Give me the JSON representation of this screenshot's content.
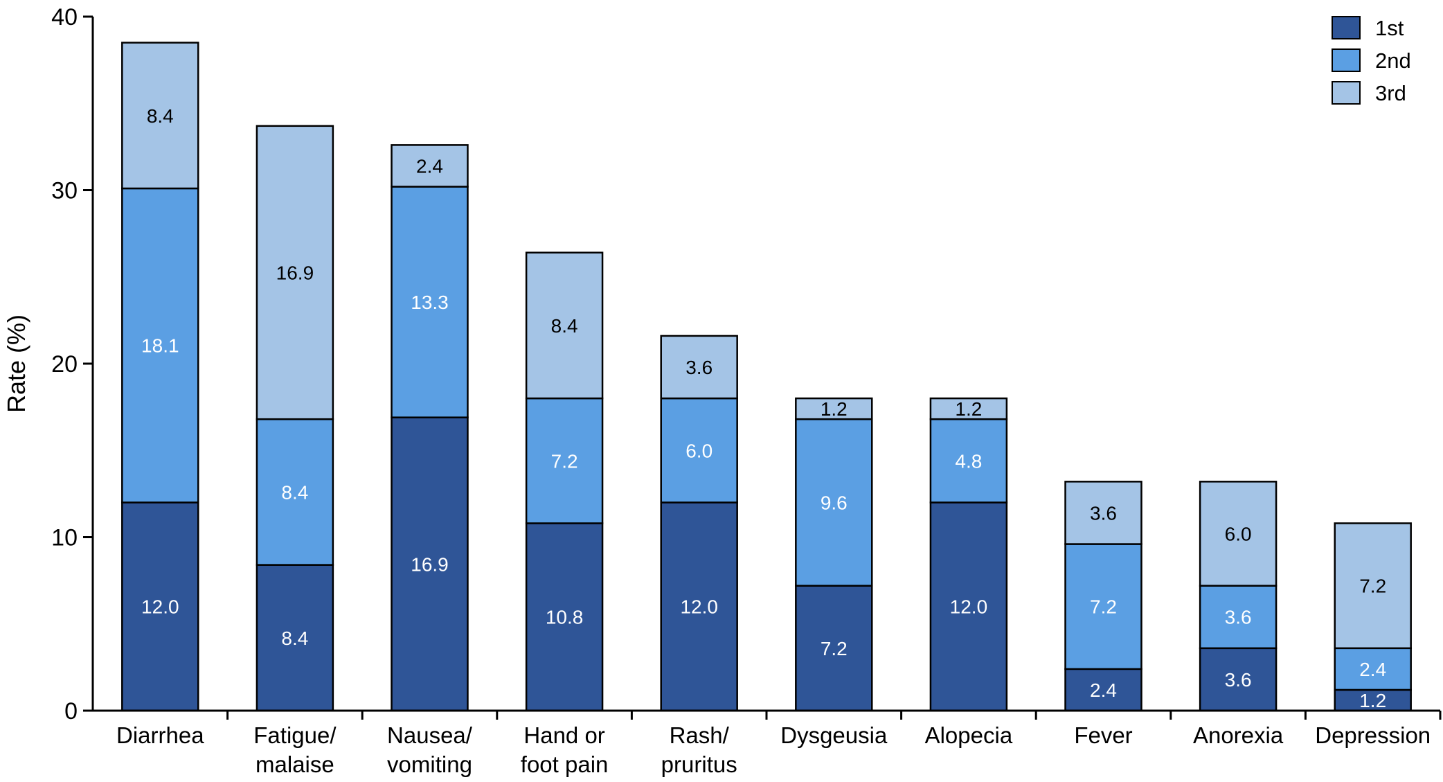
{
  "chart_data": {
    "type": "bar",
    "stacked": true,
    "categories": [
      [
        "Diarrhea"
      ],
      [
        "Fatigue/",
        "malaise"
      ],
      [
        "Nausea/",
        "vomiting"
      ],
      [
        "Hand or",
        "foot pain"
      ],
      [
        "Rash/",
        "pruritus"
      ],
      [
        "Dysgeusia"
      ],
      [
        "Alopecia"
      ],
      [
        "Fever"
      ],
      [
        "Anorexia"
      ],
      [
        "Depression"
      ]
    ],
    "series": [
      {
        "name": "1st",
        "color": "#2f5597",
        "label_color": "#ffffff",
        "values": [
          12.0,
          8.4,
          16.9,
          10.8,
          12.0,
          7.2,
          12.0,
          2.4,
          3.6,
          1.2
        ],
        "labels": [
          "12.0",
          "8.4",
          "16.9",
          "10.8",
          "12.0",
          "7.2",
          "12.0",
          "2.4",
          "3.6",
          "1.2"
        ]
      },
      {
        "name": "2nd",
        "color": "#5b9fe3",
        "label_color": "#ffffff",
        "values": [
          18.1,
          8.4,
          13.3,
          7.2,
          6.0,
          9.6,
          4.8,
          7.2,
          3.6,
          2.4
        ],
        "labels": [
          "18.1",
          "8.4",
          "13.3",
          "7.2",
          "6.0",
          "9.6",
          "4.8",
          "7.2",
          "3.6",
          "2.4"
        ]
      },
      {
        "name": "3rd",
        "color": "#a4c4e6",
        "label_color": "#000000",
        "values": [
          8.4,
          16.9,
          2.4,
          8.4,
          3.6,
          1.2,
          1.2,
          3.6,
          6.0,
          7.2
        ],
        "labels": [
          "8.4",
          "16.9",
          "2.4",
          "8.4",
          "3.6",
          "1.2",
          "1.2",
          "3.6",
          "6.0",
          "7.2"
        ]
      }
    ],
    "ylabel": "Rate (%)",
    "ylim": [
      0,
      40
    ],
    "yticks": [
      "0",
      "10",
      "20",
      "30",
      "40"
    ],
    "ytick_values": [
      0,
      10,
      20,
      30,
      40
    ],
    "grid": false,
    "legend_position": "top-right"
  }
}
